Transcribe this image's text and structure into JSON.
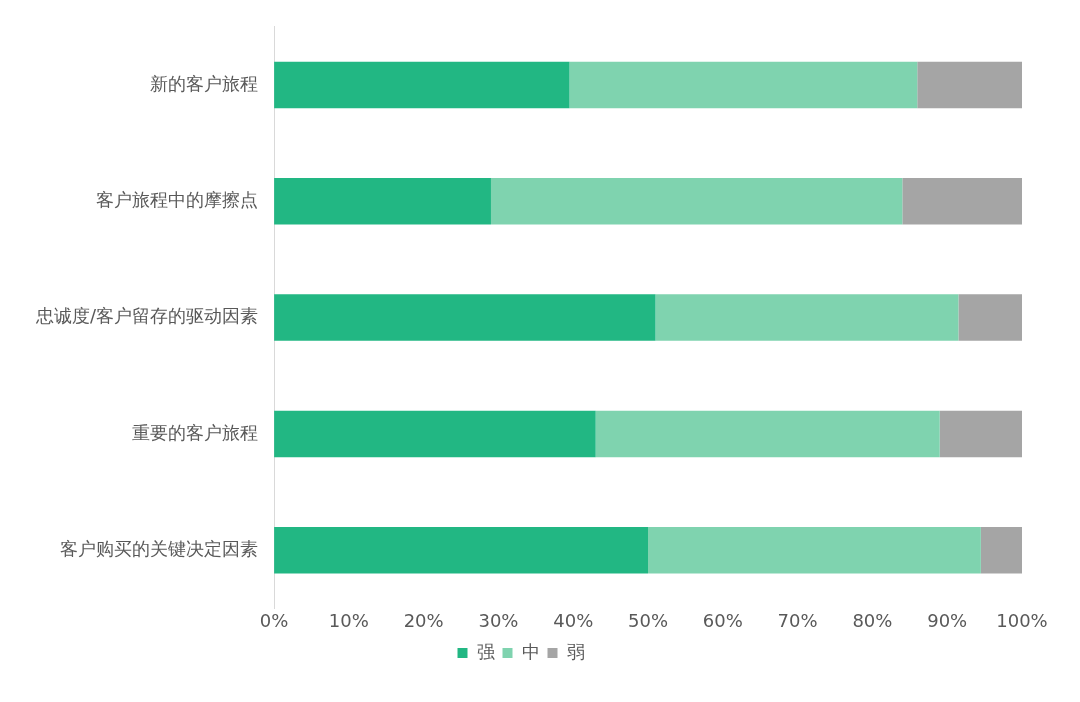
{
  "chart_data": {
    "type": "bar",
    "orientation": "horizontal",
    "stacked": true,
    "categories": [
      "新的客户旅程",
      "客户旅程中的摩擦点",
      "忠诚度/客户留存的驱动因素",
      "重要的客户旅程",
      "客户购买的关键决定因素"
    ],
    "series": [
      {
        "name": "强",
        "color": "#22b783",
        "values": [
          39.5,
          29,
          51,
          43,
          50
        ]
      },
      {
        "name": "中",
        "color": "#7fd3af",
        "values": [
          46.5,
          55,
          40.5,
          46,
          44.5
        ]
      },
      {
        "name": "弱",
        "color": "#a5a5a5",
        "values": [
          14,
          16,
          8.5,
          11,
          5.5
        ]
      }
    ],
    "xlim": [
      0,
      100
    ],
    "xticks": [
      {
        "value": 0,
        "label": "0%"
      },
      {
        "value": 10,
        "label": "10%"
      },
      {
        "value": 20,
        "label": "20%"
      },
      {
        "value": 30,
        "label": "30%"
      },
      {
        "value": 40,
        "label": "40%"
      },
      {
        "value": 50,
        "label": "50%"
      },
      {
        "value": 60,
        "label": "60%"
      },
      {
        "value": 70,
        "label": "70%"
      },
      {
        "value": 80,
        "label": "80%"
      },
      {
        "value": 90,
        "label": "90%"
      },
      {
        "value": 100,
        "label": "100%"
      }
    ],
    "grid": false,
    "legend": "bottom"
  }
}
